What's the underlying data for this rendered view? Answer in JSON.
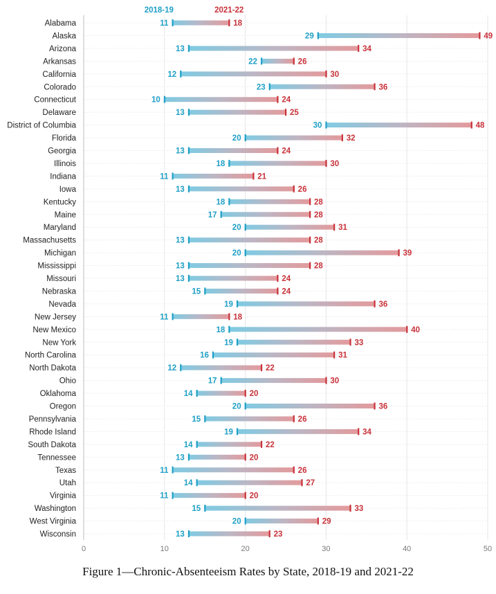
{
  "chart_data": {
    "type": "dumbbell",
    "series": [
      {
        "name": "2018-19",
        "color": "#1fa0c6"
      },
      {
        "name": "2021-22",
        "color": "#c8323a"
      }
    ],
    "categories": [
      "Alabama",
      "Alaska",
      "Arizona",
      "Arkansas",
      "California",
      "Colorado",
      "Connecticut",
      "Delaware",
      "District of Columbia",
      "Florida",
      "Georgia",
      "Illinois",
      "Indiana",
      "Iowa",
      "Kentucky",
      "Maine",
      "Maryland",
      "Massachusetts",
      "Michigan",
      "Mississippi",
      "Missouri",
      "Nebraska",
      "Nevada",
      "New Jersey",
      "New Mexico",
      "New York",
      "North Carolina",
      "North Dakota",
      "Ohio",
      "Oklahoma",
      "Oregon",
      "Pennsylvania",
      "Rhode Island",
      "South Dakota",
      "Tennessee",
      "Texas",
      "Utah",
      "Virginia",
      "Washington",
      "West Virginia",
      "Wisconsin"
    ],
    "values_2018_19": [
      11,
      29,
      13,
      22,
      12,
      23,
      10,
      13,
      30,
      20,
      13,
      18,
      11,
      13,
      18,
      17,
      20,
      13,
      20,
      13,
      13,
      15,
      19,
      11,
      18,
      19,
      16,
      12,
      17,
      14,
      20,
      15,
      19,
      14,
      13,
      11,
      14,
      11,
      15,
      20,
      13
    ],
    "values_2021_22": [
      18,
      49,
      34,
      26,
      30,
      36,
      24,
      25,
      48,
      32,
      24,
      30,
      21,
      26,
      28,
      28,
      31,
      28,
      39,
      28,
      24,
      24,
      36,
      18,
      40,
      33,
      31,
      22,
      30,
      20,
      36,
      26,
      34,
      22,
      20,
      26,
      27,
      20,
      33,
      29,
      23
    ],
    "x_ticks": [
      0,
      10,
      20,
      30,
      40,
      50
    ],
    "xlim": [
      0,
      50
    ],
    "grid": true,
    "legend_placement": "top"
  },
  "caption": "Figure 1—Chronic-Absenteeism Rates by State, 2018-19 and 2021-22"
}
